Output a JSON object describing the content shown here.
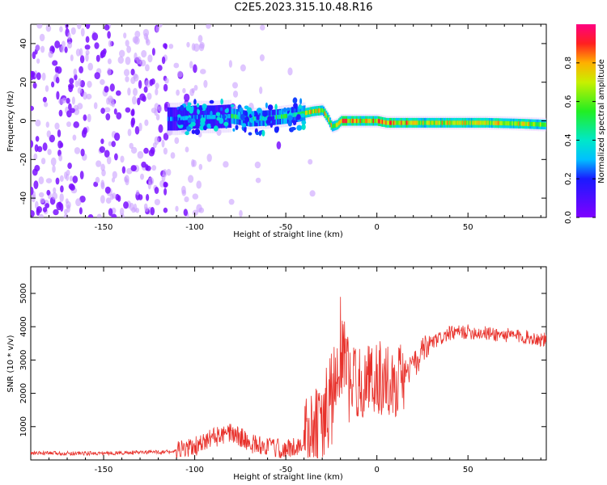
{
  "title": "C2E5.2023.315.10.48.R16",
  "chart_data": [
    {
      "type": "heatmap",
      "title": "",
      "xlabel": "Height of straight line (km)",
      "ylabel": "Frequency (Hz)",
      "xlim": [
        -190,
        93
      ],
      "ylim": [
        -50,
        50
      ],
      "xticks": [
        -150,
        -100,
        -50,
        0,
        50
      ],
      "yticks": [
        -40,
        -20,
        0,
        20,
        40
      ],
      "colorbar": {
        "label": "Normalized spectral amplitude",
        "range": [
          0,
          1
        ],
        "ticks": [
          "0.0",
          "0.2",
          "0.4",
          "0.6",
          "0.8"
        ]
      },
      "ridge_frequency_hz": {
        "x": [
          -110,
          -100,
          -90,
          -80,
          -70,
          -60,
          -50,
          -40,
          -35,
          -30,
          -27,
          -25,
          -22,
          -20,
          -15,
          -10,
          -5,
          0,
          5,
          10,
          20,
          40,
          60,
          80,
          93
        ],
        "y": [
          1,
          2,
          2,
          2.5,
          1,
          1.5,
          2.5,
          4,
          5,
          5.5,
          1,
          -3,
          -2,
          0,
          0,
          0,
          0,
          0,
          -1,
          -1,
          -1,
          -1,
          -1,
          -1.5,
          -2
        ]
      }
    },
    {
      "type": "line",
      "title": "",
      "xlabel": "Height of straight line (km)",
      "ylabel": "SNR (10 * v/v)",
      "xlim": [
        -190,
        93
      ],
      "ylim": [
        0,
        5800
      ],
      "xticks": [
        -150,
        -100,
        -50,
        0,
        50
      ],
      "yticks": [
        1000,
        2000,
        3000,
        4000,
        5000
      ],
      "series": [
        {
          "color": "#e8312b",
          "x": [
            -190,
            -150,
            -110,
            -100,
            -95,
            -90,
            -85,
            -80,
            -75,
            -70,
            -65,
            -60,
            -55,
            -50,
            -45,
            -40,
            -35,
            -30,
            -25,
            -22,
            -20,
            -18,
            -15,
            -10,
            -5,
            0,
            5,
            10,
            15,
            20,
            25,
            30,
            40,
            50,
            60,
            70,
            80,
            93
          ],
          "y": [
            200,
            200,
            250,
            400,
            500,
            700,
            700,
            800,
            700,
            500,
            450,
            400,
            350,
            300,
            400,
            500,
            700,
            1100,
            1800,
            2500,
            3500,
            3000,
            2400,
            2300,
            2400,
            2500,
            2400,
            2300,
            2600,
            2800,
            3200,
            3500,
            3800,
            3850,
            3800,
            3750,
            3700,
            3600
          ]
        }
      ]
    }
  ]
}
